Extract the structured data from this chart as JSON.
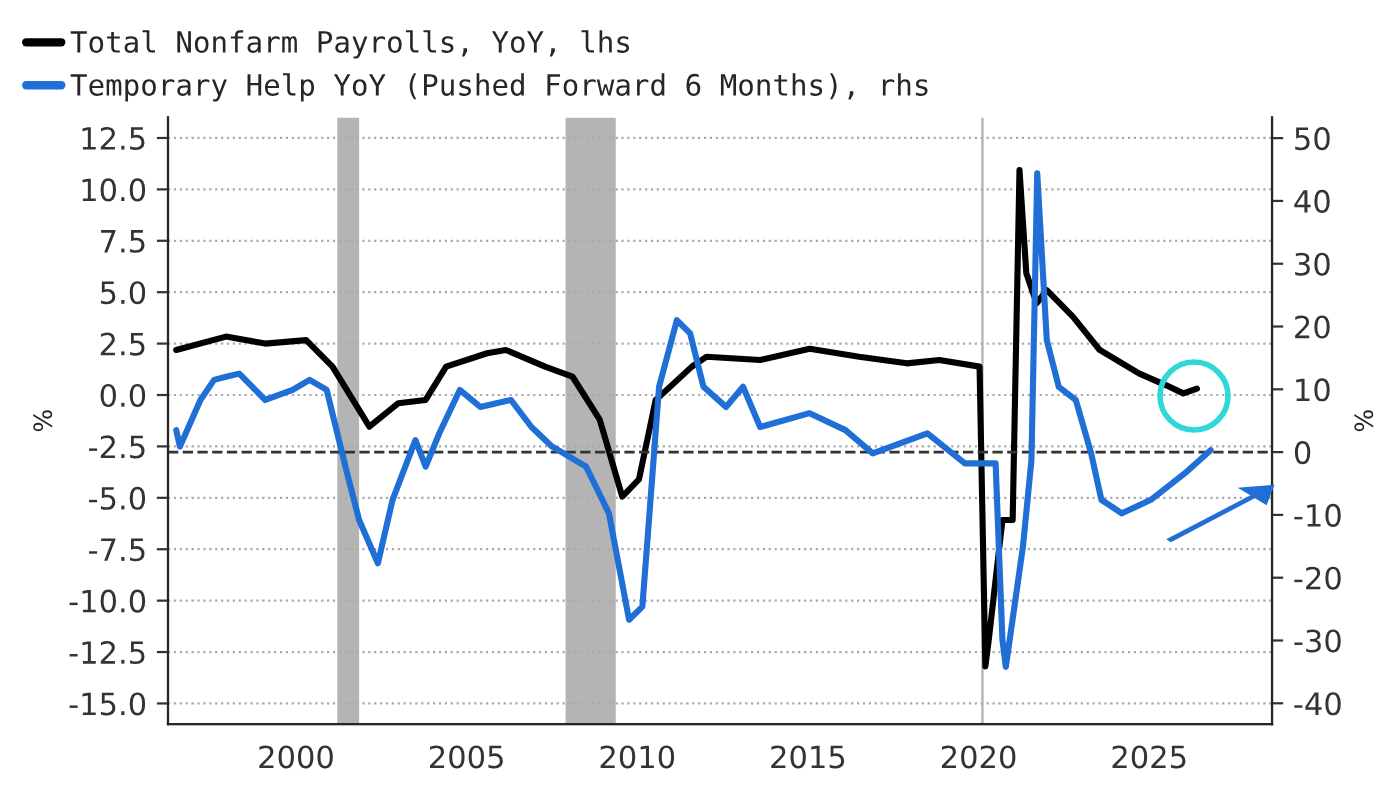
{
  "chart_data": {
    "type": "line",
    "ylabel": "%",
    "y2label": "%",
    "xlim": [
      1996.25,
      2028.6
    ],
    "xticks": [
      2000,
      2005,
      2010,
      2015,
      2020,
      2025
    ],
    "ylim": [
      -16,
      13.5
    ],
    "yticks": [
      {
        "value": -15,
        "label": "-15.0"
      },
      {
        "value": -12.5,
        "label": "-12.5"
      },
      {
        "value": -10,
        "label": "-10.0"
      },
      {
        "value": -7.5,
        "label": "-7.5"
      },
      {
        "value": -5,
        "label": "-5.0"
      },
      {
        "value": -2.5,
        "label": "-2.5"
      },
      {
        "value": 0,
        "label": "0.0"
      },
      {
        "value": 2.5,
        "label": "2.5"
      },
      {
        "value": 5,
        "label": "5.0"
      },
      {
        "value": 7.5,
        "label": "7.5"
      },
      {
        "value": 10,
        "label": "10.0"
      },
      {
        "value": 12.5,
        "label": "12.5"
      }
    ],
    "y2lim": [
      -43.3,
      53.3
    ],
    "y2ticks": [
      -40,
      -30,
      -20,
      -10,
      0,
      10,
      20,
      30,
      40,
      50
    ],
    "grid": "y",
    "legend": "top",
    "line_style": "solid",
    "series": [
      {
        "name": "Total Nonfarm Payrolls, YoY, lhs",
        "color": "#000000",
        "x": [
          1996.49,
          1997.95,
          1999.1,
          2000.3,
          2001.07,
          2002.15,
          2003.0,
          2003.8,
          2004.4,
          2005.6,
          2006.15,
          2007.3,
          2008.1,
          2008.9,
          2009.56,
          2010.05,
          2010.54,
          2010.86,
          2011.6,
          2012.03,
          2013.6,
          2015.05,
          2016.5,
          2017.9,
          2018.85,
          2020.03,
          2020.2,
          2020.3,
          2020.7,
          2021.0,
          2021.2,
          2021.4,
          2021.7,
          2022.0,
          2022.77,
          2023.55,
          2024.7,
          2025.5,
          2026.0,
          2026.4
        ],
        "values": [
          2.19,
          2.84,
          2.5,
          2.67,
          1.38,
          -1.54,
          -0.4,
          -0.24,
          1.38,
          2.03,
          2.19,
          1.38,
          0.9,
          -1.2,
          -4.94,
          -4.1,
          -0.24,
          0.24,
          1.38,
          1.86,
          1.7,
          2.25,
          1.86,
          1.54,
          1.7,
          1.38,
          -13.2,
          -11.9,
          -6.08,
          -6.08,
          10.94,
          5.92,
          4.46,
          5.1,
          3.8,
          2.19,
          1.05,
          0.47,
          0.08,
          0.31
        ]
      },
      {
        "name": "Temporary Help YoY (Pushed Forward 6 Months), rhs",
        "color": "#1f6fd6",
        "axis": "y2",
        "x": [
          1996.49,
          1996.6,
          1997.2,
          1997.6,
          1997.95,
          1998.34,
          1999.1,
          1999.9,
          2000.4,
          2000.9,
          2001.5,
          2001.85,
          2002.4,
          2002.83,
          2003.5,
          2003.8,
          2004.2,
          2004.8,
          2005.4,
          2006.3,
          2006.9,
          2007.5,
          2008.5,
          2009.17,
          2009.76,
          2010.15,
          2010.64,
          2011.16,
          2011.55,
          2011.94,
          2012.6,
          2013.1,
          2013.6,
          2015.05,
          2016.1,
          2016.9,
          2018.5,
          2019.6,
          2020.5,
          2020.7,
          2020.8,
          2021.3,
          2021.55,
          2021.72,
          2022.0,
          2022.35,
          2022.85,
          2023.3,
          2023.6,
          2024.2,
          2025.05,
          2026.04,
          2026.8
        ],
        "values": [
          3.5,
          0.9,
          8.3,
          11.5,
          12.0,
          12.5,
          8.3,
          9.9,
          11.5,
          9.9,
          -3.4,
          -10.8,
          -17.7,
          -7.6,
          1.9,
          -2.3,
          3.0,
          9.9,
          7.2,
          8.3,
          4.0,
          0.9,
          -2.3,
          -9.75,
          -26.7,
          -24.6,
          10.4,
          21.0,
          18.9,
          10.4,
          7.2,
          10.4,
          4.0,
          6.2,
          3.5,
          -0.2,
          3.0,
          -1.8,
          -1.8,
          -29.9,
          -34.2,
          -15.1,
          -1.3,
          44.4,
          17.8,
          10.4,
          8.3,
          -0.2,
          -7.6,
          -9.75,
          -7.6,
          -3.4,
          0.3
        ]
      }
    ],
    "ref_lines": [
      {
        "axis": "y2",
        "value": 0,
        "color": "#333333",
        "line_style": "dashed"
      }
    ],
    "bands": [
      {
        "axis": "x",
        "from": 2001.21,
        "to": 2001.85,
        "color": "#b4b4b4"
      },
      {
        "axis": "x",
        "from": 2007.9,
        "to": 2009.37,
        "color": "#b4b4b4"
      },
      {
        "axis": "x",
        "from": 2020.08,
        "to": 2020.15,
        "color": "#b4b4b4"
      }
    ]
  }
}
